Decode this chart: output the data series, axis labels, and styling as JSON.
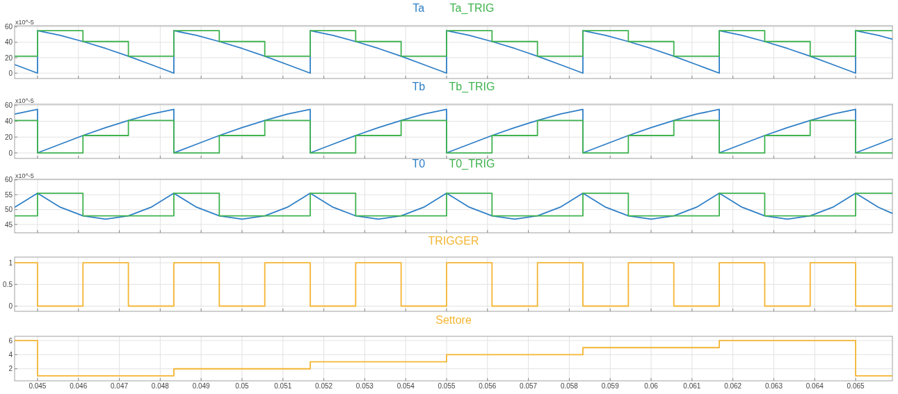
{
  "chart_data": [
    {
      "type": "line",
      "ylabel": "x10^-5",
      "xlim": [
        0.04444,
        0.0659
      ],
      "xticks": [
        0.045,
        0.046,
        0.047,
        0.048,
        0.049,
        0.05,
        0.051,
        0.052,
        0.053,
        0.054,
        0.055,
        0.056,
        0.057,
        0.058,
        0.059,
        0.06,
        0.061,
        0.062,
        0.063,
        0.064,
        0.065
      ],
      "ylim": [
        -7,
        61.5
      ],
      "yticks": [
        0,
        20,
        40,
        60
      ],
      "grid": true,
      "legend": "top",
      "tick_labels": "y",
      "series": [
        {
          "name": "Ta",
          "color": "#2f7fc6",
          "x": [
            0.044444,
            0.045,
            0.045,
            0.045556,
            0.046111,
            0.046667,
            0.047222,
            0.047778,
            0.048333,
            0.048333,
            0.048889,
            0.049444,
            0.05,
            0.050556,
            0.051111,
            0.051667,
            0.051667,
            0.052222,
            0.052778,
            0.053333,
            0.053889,
            0.054444,
            0.055,
            0.055,
            0.055556,
            0.056111,
            0.056667,
            0.057222,
            0.057778,
            0.058333,
            0.058333,
            0.058889,
            0.059444,
            0.06,
            0.060556,
            0.061111,
            0.061667,
            0.061667,
            0.062222,
            0.062778,
            0.063333,
            0.063889,
            0.064444,
            0.065,
            0.065,
            0.065556,
            0.0659
          ],
          "values": [
            11,
            0,
            55,
            49,
            41,
            32,
            22,
            11,
            0,
            55,
            49,
            41,
            32,
            22,
            11,
            0,
            55,
            49,
            41,
            32,
            22,
            11,
            0,
            55,
            49,
            41,
            32,
            22,
            11,
            0,
            55,
            49,
            41,
            32,
            22,
            11,
            0,
            55,
            49,
            41,
            32,
            22,
            11,
            0,
            55,
            49,
            44
          ]
        },
        {
          "name": "Ta_TRIG",
          "type": "step",
          "color": "#3fb34f",
          "x": [
            0.04444,
            0.045,
            0.046111,
            0.047222,
            0.048333,
            0.049444,
            0.050556,
            0.051667,
            0.052778,
            0.053889,
            0.055,
            0.056111,
            0.057222,
            0.058333,
            0.059444,
            0.060556,
            0.061667,
            0.062778,
            0.063889,
            0.065,
            0.0659
          ],
          "values": [
            22,
            55,
            41,
            22,
            55,
            41,
            22,
            55,
            41,
            22,
            55,
            41,
            22,
            55,
            41,
            22,
            55,
            41,
            22,
            55,
            55
          ]
        }
      ]
    },
    {
      "type": "line",
      "ylabel": "x10^-5",
      "xlim": [
        0.04444,
        0.0659
      ],
      "xticks": [
        0.045,
        0.046,
        0.047,
        0.048,
        0.049,
        0.05,
        0.051,
        0.052,
        0.053,
        0.054,
        0.055,
        0.056,
        0.057,
        0.058,
        0.059,
        0.06,
        0.061,
        0.062,
        0.063,
        0.064,
        0.065
      ],
      "ylim": [
        -7,
        61.5
      ],
      "yticks": [
        0,
        20,
        40,
        60
      ],
      "grid": true,
      "legend": "top",
      "tick_labels": "y",
      "series": [
        {
          "name": "Tb",
          "color": "#2f7fc6",
          "x": [
            0.044444,
            0.045,
            0.045,
            0.045556,
            0.046111,
            0.046667,
            0.047222,
            0.047778,
            0.048333,
            0.048333,
            0.048889,
            0.049444,
            0.05,
            0.050556,
            0.051111,
            0.051667,
            0.051667,
            0.052222,
            0.052778,
            0.053333,
            0.053889,
            0.054444,
            0.055,
            0.055,
            0.055556,
            0.056111,
            0.056667,
            0.057222,
            0.057778,
            0.058333,
            0.058333,
            0.058889,
            0.059444,
            0.06,
            0.060556,
            0.061111,
            0.061667,
            0.061667,
            0.062222,
            0.062778,
            0.063333,
            0.063889,
            0.064444,
            0.065,
            0.065,
            0.065556,
            0.0659
          ],
          "values": [
            49,
            55,
            0,
            11,
            22,
            32,
            41,
            49,
            55,
            0,
            11,
            22,
            32,
            41,
            49,
            55,
            0,
            11,
            22,
            32,
            41,
            49,
            55,
            0,
            11,
            22,
            32,
            41,
            49,
            55,
            0,
            11,
            22,
            32,
            41,
            49,
            55,
            0,
            11,
            22,
            32,
            41,
            49,
            55,
            0,
            11,
            18
          ]
        },
        {
          "name": "Tb_TRIG",
          "type": "step",
          "color": "#3fb34f",
          "x": [
            0.04444,
            0.045,
            0.046111,
            0.047222,
            0.048333,
            0.049444,
            0.050556,
            0.051667,
            0.052778,
            0.053889,
            0.055,
            0.056111,
            0.057222,
            0.058333,
            0.059444,
            0.060556,
            0.061667,
            0.062778,
            0.063889,
            0.065,
            0.0659
          ],
          "values": [
            41,
            0,
            22,
            41,
            0,
            22,
            41,
            0,
            22,
            41,
            0,
            22,
            41,
            0,
            22,
            41,
            0,
            22,
            41,
            0,
            0
          ]
        }
      ]
    },
    {
      "type": "line",
      "ylabel": "x10^-5",
      "xlim": [
        0.04444,
        0.0659
      ],
      "xticks": [
        0.045,
        0.046,
        0.047,
        0.048,
        0.049,
        0.05,
        0.051,
        0.052,
        0.053,
        0.054,
        0.055,
        0.056,
        0.057,
        0.058,
        0.059,
        0.06,
        0.061,
        0.062,
        0.063,
        0.064,
        0.065
      ],
      "ylim": [
        42.2,
        60.2
      ],
      "yticks": [
        45,
        50,
        55,
        60
      ],
      "grid": true,
      "legend": "top",
      "tick_labels": "y",
      "series": [
        {
          "name": "T0",
          "color": "#2f7fc6",
          "x": [
            0.044444,
            0.045,
            0.045556,
            0.046111,
            0.046667,
            0.047222,
            0.047778,
            0.048333,
            0.048889,
            0.049444,
            0.05,
            0.050556,
            0.051111,
            0.051667,
            0.052222,
            0.052778,
            0.053333,
            0.053889,
            0.054444,
            0.055,
            0.055556,
            0.056111,
            0.056667,
            0.057222,
            0.057778,
            0.058333,
            0.058889,
            0.059444,
            0.06,
            0.060556,
            0.061111,
            0.061667,
            0.062222,
            0.062778,
            0.063333,
            0.063889,
            0.064444,
            0.065,
            0.065556,
            0.0659
          ],
          "values": [
            50.8,
            55.5,
            50.8,
            47.9,
            46.8,
            47.9,
            50.8,
            55.5,
            50.8,
            47.9,
            46.8,
            47.9,
            50.8,
            55.5,
            50.8,
            47.9,
            46.8,
            47.9,
            50.8,
            55.5,
            50.8,
            47.9,
            46.8,
            47.9,
            50.8,
            55.5,
            50.8,
            47.9,
            46.8,
            47.9,
            50.8,
            55.5,
            50.8,
            47.9,
            46.8,
            47.9,
            50.8,
            55.5,
            50.8,
            48.7
          ]
        },
        {
          "name": "T0_TRIG",
          "type": "step",
          "color": "#3fb34f",
          "x": [
            0.04444,
            0.045,
            0.046111,
            0.047222,
            0.048333,
            0.049444,
            0.050556,
            0.051667,
            0.052778,
            0.053889,
            0.055,
            0.056111,
            0.057222,
            0.058333,
            0.059444,
            0.060556,
            0.061667,
            0.062778,
            0.063889,
            0.065,
            0.0659
          ],
          "values": [
            47.9,
            55.5,
            47.9,
            47.9,
            55.5,
            47.9,
            47.9,
            55.5,
            47.9,
            47.9,
            55.5,
            47.9,
            47.9,
            55.5,
            47.9,
            47.9,
            55.5,
            47.9,
            47.9,
            55.5,
            55.5
          ]
        }
      ]
    },
    {
      "type": "step",
      "xlim": [
        0.04444,
        0.0659
      ],
      "xticks": [
        0.045,
        0.046,
        0.047,
        0.048,
        0.049,
        0.05,
        0.051,
        0.052,
        0.053,
        0.054,
        0.055,
        0.056,
        0.057,
        0.058,
        0.059,
        0.06,
        0.061,
        0.062,
        0.063,
        0.064,
        0.065
      ],
      "ylim": [
        -0.12,
        1.13
      ],
      "yticks": [
        0,
        0.5,
        1
      ],
      "grid": true,
      "legend": "top",
      "tick_labels": "y",
      "series": [
        {
          "name": "TRIGGER",
          "color": "#f4b533",
          "x": [
            0.04444,
            0.045,
            0.046111,
            0.047222,
            0.048333,
            0.049444,
            0.050556,
            0.051667,
            0.052778,
            0.053889,
            0.055,
            0.056111,
            0.057222,
            0.058333,
            0.059444,
            0.060556,
            0.061667,
            0.062778,
            0.063889,
            0.065,
            0.0659
          ],
          "values": [
            1,
            0,
            1,
            0,
            1,
            0,
            1,
            0,
            1,
            0,
            1,
            0,
            1,
            0,
            1,
            0,
            1,
            0,
            1,
            0,
            0
          ]
        }
      ]
    },
    {
      "type": "step",
      "xlim": [
        0.04444,
        0.0659
      ],
      "xticks": [
        0.045,
        0.046,
        0.047,
        0.048,
        0.049,
        0.05,
        0.051,
        0.052,
        0.053,
        0.054,
        0.055,
        0.056,
        0.057,
        0.058,
        0.059,
        0.06,
        0.061,
        0.062,
        0.063,
        0.064,
        0.065
      ],
      "ylim": [
        0.3,
        6.6
      ],
      "yticks": [
        2,
        4,
        6
      ],
      "grid": true,
      "legend": "top",
      "series": [
        {
          "name": "Settore",
          "color": "#f4b533",
          "x": [
            0.04444,
            0.045,
            0.048333,
            0.051667,
            0.055,
            0.058333,
            0.061667,
            0.065,
            0.0659
          ],
          "values": [
            6,
            1,
            2,
            3,
            4,
            5,
            6,
            1,
            1
          ]
        }
      ]
    }
  ]
}
